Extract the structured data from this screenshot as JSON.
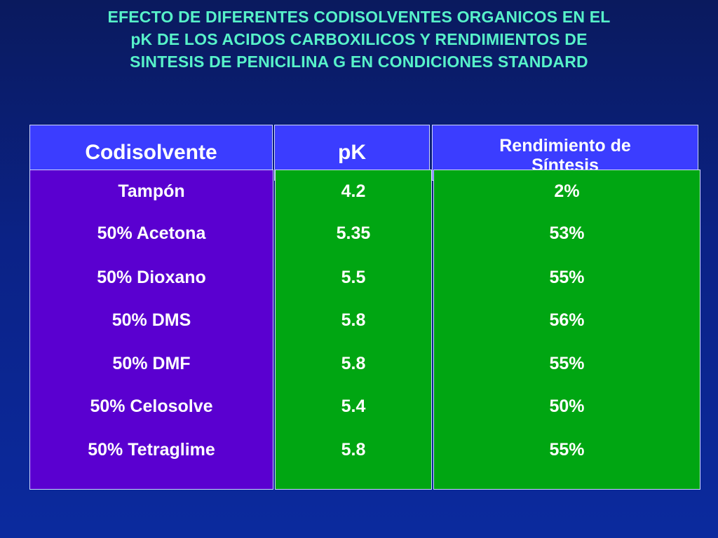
{
  "title": {
    "line1": "EFECTO DE DIFERENTES CODISOLVENTES ORGANICOS EN EL",
    "line2": "pK DE LOS ACIDOS CARBOXILICOS Y RENDIMIENTOS DE",
    "line3": "SINTESIS DE PENICILINA G EN CONDICIONES STANDARD"
  },
  "headers": {
    "codisolvente": "Codisolvente",
    "pk": "pK",
    "rendimiento_line1": "Rendimiento de",
    "rendimiento_line2": "Síntesis"
  },
  "rows": [
    {
      "codisolvente": "Tampón",
      "pk": "4.2",
      "rendimiento": "2%"
    },
    {
      "codisolvente": "50% Acetona",
      "pk": "5.35",
      "rendimiento": "53%"
    },
    {
      "codisolvente": "50% Dioxano",
      "pk": "5.5",
      "rendimiento": "55%"
    },
    {
      "codisolvente": "50% DMS",
      "pk": "5.8",
      "rendimiento": "56%"
    },
    {
      "codisolvente": "50% DMF",
      "pk": "5.8",
      "rendimiento": "55%"
    },
    {
      "codisolvente": "50% Celosolve",
      "pk": "5.4",
      "rendimiento": "50%"
    },
    {
      "codisolvente": "50% Tetraglime",
      "pk": "5.8",
      "rendimiento": "55%"
    }
  ],
  "colors": {
    "background": "#0b2286",
    "title": "#57f2c9",
    "header": "#3b3dff",
    "column_codisolvente": "#5a00d0",
    "column_values": "#00a612",
    "text": "#ffffff"
  }
}
